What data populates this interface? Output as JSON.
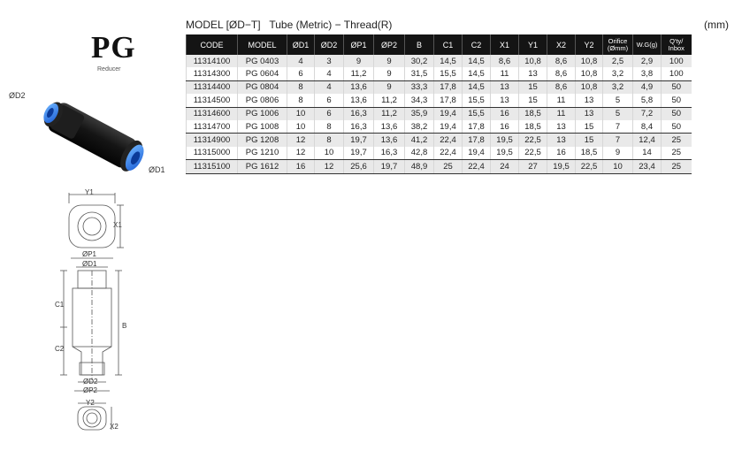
{
  "product": {
    "code": "PG",
    "name": "Reducer"
  },
  "dim_labels": {
    "od2": "ØD2",
    "od1": "ØD1",
    "y1": "Y1",
    "x1": "X1",
    "op1": "ØP1",
    "od1b": "ØD1",
    "c1": "C1",
    "c2": "C2",
    "b": "B",
    "od2b": "ØD2",
    "op2": "ØP2",
    "y2": "Y2",
    "x2": "X2"
  },
  "header": {
    "model_title": "MODEL [ØD−T]",
    "description": "Tube (Metric) − Thread(R)",
    "unit": "(mm)"
  },
  "table": {
    "columns": [
      "CODE",
      "MODEL",
      "ØD1",
      "ØD2",
      "ØP1",
      "ØP2",
      "B",
      "C1",
      "C2",
      "X1",
      "Y1",
      "X2",
      "Y2",
      "Orifice (Ømm)",
      "W.G(g)",
      "Q'ty/ Inbox"
    ],
    "rows": [
      [
        "11314100",
        "PG 0403",
        "4",
        "3",
        "9",
        "9",
        "30,2",
        "14,5",
        "14,5",
        "8,6",
        "10,8",
        "8,6",
        "10,8",
        "2,5",
        "2,9",
        "100"
      ],
      [
        "11314300",
        "PG 0604",
        "6",
        "4",
        "11,2",
        "9",
        "31,5",
        "15,5",
        "14,5",
        "11",
        "13",
        "8,6",
        "10,8",
        "3,2",
        "3,8",
        "100"
      ],
      [
        "11314400",
        "PG 0804",
        "8",
        "4",
        "13,6",
        "9",
        "33,3",
        "17,8",
        "14,5",
        "13",
        "15",
        "8,6",
        "10,8",
        "3,2",
        "4,9",
        "50"
      ],
      [
        "11314500",
        "PG 0806",
        "8",
        "6",
        "13,6",
        "11,2",
        "34,3",
        "17,8",
        "15,5",
        "13",
        "15",
        "11",
        "13",
        "5",
        "5,8",
        "50"
      ],
      [
        "11314600",
        "PG 1006",
        "10",
        "6",
        "16,3",
        "11,2",
        "35,9",
        "19,4",
        "15,5",
        "16",
        "18,5",
        "11",
        "13",
        "5",
        "7,2",
        "50"
      ],
      [
        "11314700",
        "PG 1008",
        "10",
        "8",
        "16,3",
        "13,6",
        "38,2",
        "19,4",
        "17,8",
        "16",
        "18,5",
        "13",
        "15",
        "7",
        "8,4",
        "50"
      ],
      [
        "11314900",
        "PG 1208",
        "12",
        "8",
        "19,7",
        "13,6",
        "41,2",
        "22,4",
        "17,8",
        "19,5",
        "22,5",
        "13",
        "15",
        "7",
        "12,4",
        "25"
      ],
      [
        "11315000",
        "PG 1210",
        "12",
        "10",
        "19,7",
        "16,3",
        "42,8",
        "22,4",
        "19,4",
        "19,5",
        "22,5",
        "16",
        "18,5",
        "9",
        "14",
        "25"
      ],
      [
        "11315100",
        "PG 1612",
        "16",
        "12",
        "25,6",
        "19,7",
        "48,9",
        "25",
        "22,4",
        "24",
        "27",
        "19,5",
        "22,5",
        "10",
        "23,4",
        "25"
      ]
    ]
  }
}
